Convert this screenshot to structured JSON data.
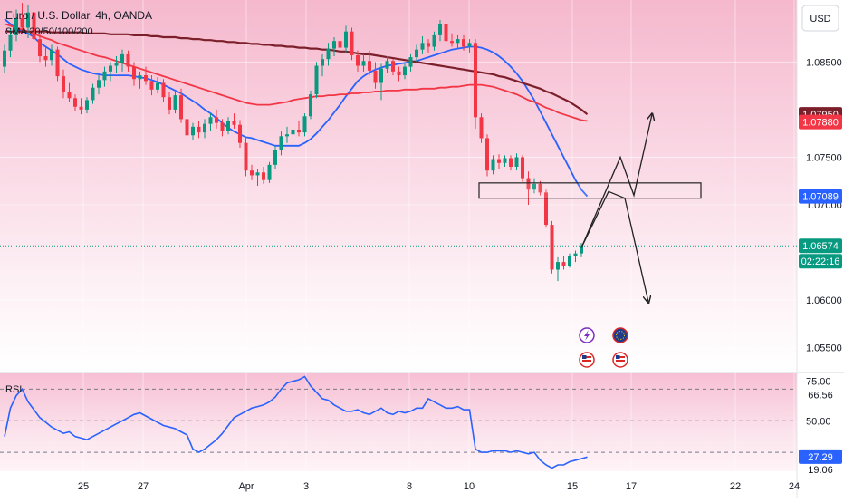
{
  "header": {
    "symbol_line": "Euro / U.S. Dollar, 4h, OANDA",
    "indicator_line": "SMA 20/50/100/200",
    "currency_button": "USD"
  },
  "rsi_label": "RSI",
  "colors": {
    "up": "#089981",
    "down": "#f23645",
    "sma20": "#2962ff",
    "sma50": "#f23645",
    "sma200": "#7b1f2a",
    "rsi": "#2962ff",
    "price_line": "#089981",
    "pink_top": "#f7bfd3",
    "pink_mid": "#fbdfe9"
  },
  "chart_data": [
    {
      "type": "candlestick",
      "title": "Euro / U.S. Dollar, 4h, OANDA",
      "x_tick_labels": [
        "25",
        "27",
        "Apr",
        "3",
        "8",
        "10",
        "15",
        "17",
        "22",
        "24"
      ],
      "y_tick_labels": [
        "1.08500",
        "1.07500",
        "1.07000",
        "1.06000",
        "1.05500"
      ],
      "ylim": [
        1.0525,
        1.0915
      ],
      "grid": true,
      "candles": [
        [
          1.0845,
          1.0868,
          1.0838,
          1.0862
        ],
        [
          1.0862,
          1.0885,
          1.0855,
          1.0878
        ],
        [
          1.0878,
          1.0905,
          1.0872,
          1.0896
        ],
        [
          1.0896,
          1.0912,
          1.088,
          1.0886
        ],
        [
          1.0886,
          1.091,
          1.0875,
          1.0902
        ],
        [
          1.0902,
          1.091,
          1.0868,
          1.0874
        ],
        [
          1.0874,
          1.088,
          1.085,
          1.0856
        ],
        [
          1.0856,
          1.0866,
          1.0845,
          1.0852
        ],
        [
          1.0852,
          1.0868,
          1.0846,
          1.0863
        ],
        [
          1.0863,
          1.0866,
          1.083,
          1.0835
        ],
        [
          1.0835,
          1.0842,
          1.0812,
          1.0818
        ],
        [
          1.0818,
          1.0828,
          1.0808,
          1.0812
        ],
        [
          1.0812,
          1.0816,
          1.0798,
          1.0803
        ],
        [
          1.0803,
          1.0812,
          1.0795,
          1.08
        ],
        [
          1.08,
          1.0813,
          1.0796,
          1.081
        ],
        [
          1.081,
          1.0827,
          1.0806,
          1.0823
        ],
        [
          1.0823,
          1.0836,
          1.0816,
          1.0831
        ],
        [
          1.0831,
          1.0845,
          1.0824,
          1.084
        ],
        [
          1.084,
          1.085,
          1.083,
          1.0846
        ],
        [
          1.0846,
          1.0856,
          1.0838,
          1.0849
        ],
        [
          1.0849,
          1.0863,
          1.084,
          1.0858
        ],
        [
          1.0858,
          1.0862,
          1.084,
          1.0845
        ],
        [
          1.0845,
          1.085,
          1.0825,
          1.0832
        ],
        [
          1.0832,
          1.084,
          1.0822,
          1.0836
        ],
        [
          1.0836,
          1.0845,
          1.0826,
          1.083
        ],
        [
          1.083,
          1.0836,
          1.0815,
          1.0821
        ],
        [
          1.0821,
          1.0834,
          1.0817,
          1.0828
        ],
        [
          1.0828,
          1.0832,
          1.0808,
          1.0813
        ],
        [
          1.0813,
          1.0818,
          1.0795,
          1.08
        ],
        [
          1.08,
          1.0818,
          1.0796,
          1.0815
        ],
        [
          1.0815,
          1.0822,
          1.0786,
          1.079
        ],
        [
          1.079,
          1.0792,
          1.0768,
          1.0773
        ],
        [
          1.0773,
          1.0786,
          1.0768,
          1.0782
        ],
        [
          1.0782,
          1.0788,
          1.077,
          1.0776
        ],
        [
          1.0776,
          1.079,
          1.077,
          1.0785
        ],
        [
          1.0785,
          1.0796,
          1.0778,
          1.0792
        ],
        [
          1.0792,
          1.08,
          1.078,
          1.0786
        ],
        [
          1.0786,
          1.079,
          1.0772,
          1.0778
        ],
        [
          1.0778,
          1.0792,
          1.0774,
          1.0788
        ],
        [
          1.0788,
          1.0796,
          1.078,
          1.0784
        ],
        [
          1.0784,
          1.0789,
          1.076,
          1.0765
        ],
        [
          1.0765,
          1.077,
          1.073,
          1.0736
        ],
        [
          1.0736,
          1.0742,
          1.0726,
          1.0731
        ],
        [
          1.0731,
          1.0738,
          1.072,
          1.0734
        ],
        [
          1.0734,
          1.074,
          1.0722,
          1.0726
        ],
        [
          1.0726,
          1.0745,
          1.0723,
          1.0742
        ],
        [
          1.0742,
          1.0762,
          1.0738,
          1.0758
        ],
        [
          1.0758,
          1.0777,
          1.0752,
          1.0772
        ],
        [
          1.0772,
          1.0782,
          1.0765,
          1.0774
        ],
        [
          1.0774,
          1.0782,
          1.0768,
          1.0779
        ],
        [
          1.0779,
          1.0788,
          1.0772,
          1.0776
        ],
        [
          1.0776,
          1.0796,
          1.0772,
          1.0793
        ],
        [
          1.0793,
          1.082,
          1.079,
          1.0816
        ],
        [
          1.0816,
          1.085,
          1.0812,
          1.0846
        ],
        [
          1.0846,
          1.0858,
          1.0835,
          1.0853
        ],
        [
          1.0853,
          1.087,
          1.0846,
          1.0864
        ],
        [
          1.0864,
          1.0876,
          1.0856,
          1.0872
        ],
        [
          1.0872,
          1.088,
          1.086,
          1.0865
        ],
        [
          1.0865,
          1.0888,
          1.086,
          1.0882
        ],
        [
          1.0882,
          1.0886,
          1.0852,
          1.0857
        ],
        [
          1.0857,
          1.0862,
          1.084,
          1.0846
        ],
        [
          1.0846,
          1.0858,
          1.084,
          1.0851
        ],
        [
          1.0851,
          1.0862,
          1.0836,
          1.0841
        ],
        [
          1.0841,
          1.085,
          1.0822,
          1.0828
        ],
        [
          1.0828,
          1.0848,
          1.081,
          1.0843
        ],
        [
          1.0843,
          1.0856,
          1.0838,
          1.0851
        ],
        [
          1.0851,
          1.0853,
          1.0836,
          1.084
        ],
        [
          1.084,
          1.0845,
          1.083,
          1.0836
        ],
        [
          1.0836,
          1.0848,
          1.0832,
          1.0845
        ],
        [
          1.0845,
          1.0858,
          1.084,
          1.0855
        ],
        [
          1.0855,
          1.0868,
          1.085,
          1.0863
        ],
        [
          1.0863,
          1.0877,
          1.0858,
          1.087
        ],
        [
          1.087,
          1.0874,
          1.086,
          1.0866
        ],
        [
          1.0866,
          1.0882,
          1.0862,
          1.0878
        ],
        [
          1.0878,
          1.0894,
          1.0872,
          1.089
        ],
        [
          1.089,
          1.0892,
          1.0868,
          1.0872
        ],
        [
          1.0872,
          1.088,
          1.0866,
          1.087
        ],
        [
          1.087,
          1.0878,
          1.0864,
          1.0874
        ],
        [
          1.0874,
          1.0878,
          1.0862,
          1.0866
        ],
        [
          1.0866,
          1.0874,
          1.086,
          1.087
        ],
        [
          1.087,
          1.0874,
          1.078,
          1.0792
        ],
        [
          1.0792,
          1.0796,
          1.0765,
          1.077
        ],
        [
          1.077,
          1.0774,
          1.073,
          1.0736
        ],
        [
          1.0736,
          1.0752,
          1.0732,
          1.0748
        ],
        [
          1.0748,
          1.0753,
          1.0738,
          1.0744
        ],
        [
          1.0744,
          1.0752,
          1.074,
          1.0749
        ],
        [
          1.0749,
          1.0752,
          1.0736,
          1.074
        ],
        [
          1.074,
          1.0754,
          1.0736,
          1.075
        ],
        [
          1.075,
          1.0752,
          1.0724,
          1.0728
        ],
        [
          1.0728,
          1.0735,
          1.07,
          1.0716
        ],
        [
          1.0716,
          1.0728,
          1.0712,
          1.0722
        ],
        [
          1.0722,
          1.0725,
          1.071,
          1.0713
        ],
        [
          1.0713,
          1.0716,
          1.0676,
          1.0679
        ],
        [
          1.0679,
          1.0683,
          1.0628,
          1.0632
        ],
        [
          1.0632,
          1.0645,
          1.062,
          1.064
        ],
        [
          1.064,
          1.0646,
          1.0632,
          1.0636
        ],
        [
          1.0636,
          1.0649,
          1.0634,
          1.0646
        ],
        [
          1.0646,
          1.0652,
          1.064,
          1.0649
        ],
        [
          1.0649,
          1.066,
          1.0645,
          1.0657
        ]
      ],
      "series": [
        {
          "name": "SMA 20",
          "values": [
            1.0895,
            1.089,
            1.0885,
            1.0882,
            1.088,
            1.0876,
            1.087,
            1.0866,
            1.0862,
            1.0858,
            1.0853,
            1.0848,
            1.0845,
            1.0842,
            1.084,
            1.0838,
            1.0837,
            1.0836,
            1.0836,
            1.0836,
            1.0836,
            1.0836,
            1.0835,
            1.0834,
            1.0833,
            1.0831,
            1.0829,
            1.0826,
            1.0823,
            1.082,
            1.0817,
            1.0813,
            1.0809,
            1.0805,
            1.08,
            1.0796,
            1.0791,
            1.0786,
            1.0781,
            1.0777,
            1.0774,
            1.0771,
            1.077,
            1.0768,
            1.0766,
            1.0764,
            1.0762,
            1.0762,
            1.0762,
            1.0762,
            1.0762,
            1.0765,
            1.0769,
            1.0775,
            1.0782,
            1.0789,
            1.0797,
            1.0805,
            1.0814,
            1.0822,
            1.083,
            1.0835,
            1.0839,
            1.0842,
            1.0844,
            1.0846,
            1.0847,
            1.0848,
            1.0849,
            1.085,
            1.0851,
            1.0853,
            1.0855,
            1.0857,
            1.0859,
            1.0861,
            1.0863,
            1.0864,
            1.0865,
            1.0866,
            1.0866,
            1.0865,
            1.0863,
            1.086,
            1.0856,
            1.0851,
            1.0845,
            1.0838,
            1.083,
            1.082,
            1.081,
            1.0798,
            1.0786,
            1.0774,
            1.0762,
            1.075,
            1.0738,
            1.0726,
            1.0716,
            1.0709
          ]
        },
        {
          "name": "SMA 50",
          "values": [
            1.089,
            1.0888,
            1.0886,
            1.0884,
            1.0882,
            1.088,
            1.0877,
            1.0875,
            1.0873,
            1.087,
            1.0868,
            1.0866,
            1.0864,
            1.0862,
            1.086,
            1.0858,
            1.0856,
            1.0855,
            1.0853,
            1.0851,
            1.0849,
            1.0847,
            1.0845,
            1.0843,
            1.0841,
            1.0839,
            1.0837,
            1.0835,
            1.0833,
            1.0831,
            1.0829,
            1.0827,
            1.0825,
            1.0823,
            1.0821,
            1.0819,
            1.0817,
            1.0815,
            1.0813,
            1.0811,
            1.0809,
            1.0807,
            1.0806,
            1.0805,
            1.0805,
            1.0805,
            1.0806,
            1.0807,
            1.0808,
            1.081,
            1.0811,
            1.0812,
            1.0813,
            1.0814,
            1.0814,
            1.0815,
            1.0815,
            1.0816,
            1.0816,
            1.0817,
            1.0817,
            1.0818,
            1.0818,
            1.0819,
            1.0819,
            1.082,
            1.082,
            1.082,
            1.0821,
            1.0821,
            1.0821,
            1.0822,
            1.0822,
            1.0822,
            1.0823,
            1.0823,
            1.0824,
            1.0824,
            1.0825,
            1.0826,
            1.0826,
            1.0826,
            1.0825,
            1.0824,
            1.0822,
            1.082,
            1.0818,
            1.0816,
            1.0813,
            1.081,
            1.0808,
            1.0805,
            1.0802,
            1.08,
            1.0797,
            1.0795,
            1.0793,
            1.0791,
            1.0789,
            1.0788
          ]
        },
        {
          "name": "SMA 200",
          "values": [
            1.0882,
            1.0882,
            1.0882,
            1.0882,
            1.0882,
            1.0882,
            1.0882,
            1.0882,
            1.0881,
            1.0881,
            1.0881,
            1.0881,
            1.0881,
            1.0881,
            1.088,
            1.088,
            1.088,
            1.088,
            1.0879,
            1.0879,
            1.0879,
            1.0879,
            1.0878,
            1.0878,
            1.0878,
            1.0877,
            1.0877,
            1.0876,
            1.0876,
            1.0876,
            1.0875,
            1.0875,
            1.0874,
            1.0874,
            1.0873,
            1.0873,
            1.0872,
            1.0872,
            1.0871,
            1.0871,
            1.087,
            1.087,
            1.0869,
            1.0869,
            1.0868,
            1.0868,
            1.0867,
            1.0867,
            1.0866,
            1.0866,
            1.0865,
            1.0865,
            1.0864,
            1.0864,
            1.0863,
            1.0863,
            1.0862,
            1.0861,
            1.0861,
            1.086,
            1.0859,
            1.0858,
            1.0858,
            1.0857,
            1.0856,
            1.0855,
            1.0854,
            1.0853,
            1.0852,
            1.0851,
            1.085,
            1.0849,
            1.0848,
            1.0847,
            1.0846,
            1.0845,
            1.0844,
            1.0843,
            1.0842,
            1.0841,
            1.084,
            1.0839,
            1.0838,
            1.0837,
            1.0835,
            1.0834,
            1.0832,
            1.083,
            1.0828,
            1.0826,
            1.0824,
            1.0822,
            1.0819,
            1.0817,
            1.0814,
            1.0811,
            1.0808,
            1.0804,
            1.08,
            1.0795
          ]
        }
      ],
      "last_values": {
        "sma200": "1.07950",
        "sma50": "1.07880",
        "sma20": "1.07089",
        "price": "1.06574",
        "countdown": "02:22:16"
      },
      "zone": {
        "low": 1.0707,
        "high": 1.0723
      },
      "projection": {
        "start": 1.0655,
        "peak": 1.075,
        "mid_low": 1.071,
        "up_target": 1.0795,
        "down_target": 1.0598
      }
    },
    {
      "type": "line",
      "title": "RSI",
      "y_tick_labels": [
        "75.00",
        "50.00"
      ],
      "ylim": [
        18.0,
        80.0
      ],
      "reference_lines": [
        70,
        50,
        30
      ],
      "last_values": {
        "top": "66.56",
        "current": "27.29",
        "bottom": "19.06"
      },
      "values": [
        40,
        58,
        66,
        70,
        62,
        57,
        52,
        49,
        46,
        44,
        42,
        43,
        40,
        39,
        38,
        40,
        42,
        44,
        46,
        48,
        50,
        52,
        54,
        55,
        53,
        51,
        49,
        47,
        46,
        45,
        43,
        41,
        32,
        30,
        32,
        35,
        38,
        42,
        47,
        52,
        54,
        56,
        58,
        59,
        60,
        62,
        65,
        70,
        74,
        75,
        76,
        78,
        72,
        68,
        64,
        63,
        60,
        58,
        56,
        56,
        57,
        55,
        54,
        56,
        58,
        55,
        54,
        56,
        55,
        56,
        58,
        58,
        64,
        62,
        60,
        58,
        58,
        59,
        57,
        57,
        32,
        30,
        30,
        31,
        31,
        31,
        30,
        31,
        30,
        29,
        30,
        25,
        22,
        20,
        22,
        22,
        24,
        25,
        26,
        27
      ]
    }
  ]
}
